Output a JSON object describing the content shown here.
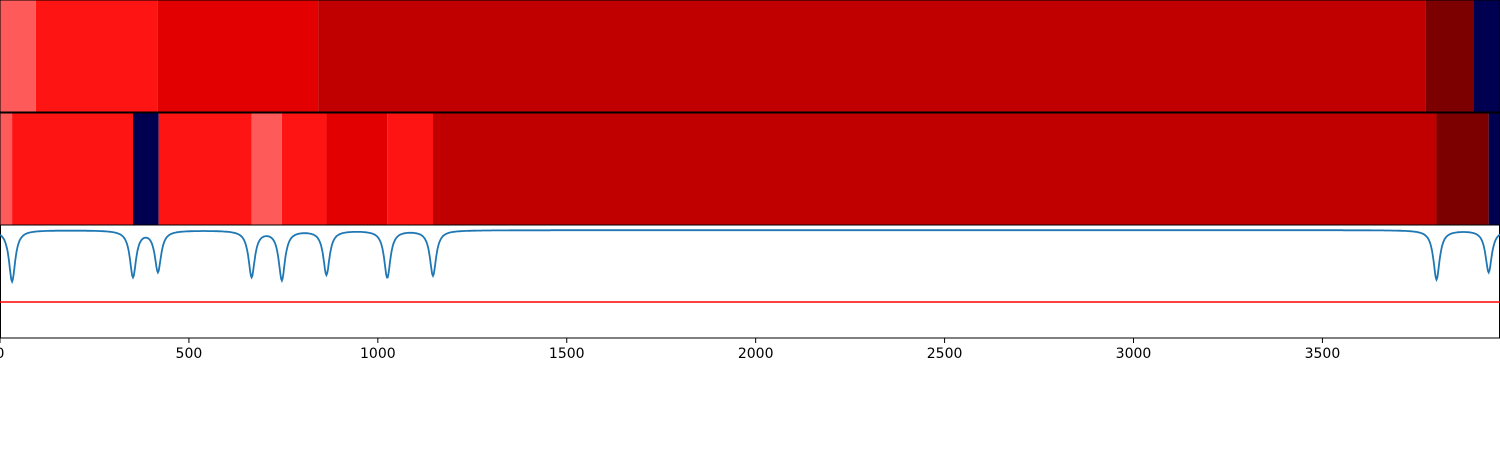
{
  "chart_data": [
    {
      "type": "heatmap",
      "title": "",
      "x_range": [
        0,
        3970
      ],
      "segments": [
        {
          "start": 0,
          "end": 95,
          "color": "#ff5a5a"
        },
        {
          "start": 95,
          "end": 418,
          "color": "#ff1414"
        },
        {
          "start": 418,
          "end": 842,
          "color": "#e20000"
        },
        {
          "start": 842,
          "end": 3772,
          "color": "#c00000"
        },
        {
          "start": 3772,
          "end": 3899,
          "color": "#7d0000"
        },
        {
          "start": 3899,
          "end": 3970,
          "color": "#000050"
        }
      ]
    },
    {
      "type": "heatmap",
      "title": "",
      "x_range": [
        0,
        3970
      ],
      "segments": [
        {
          "start": 0,
          "end": 32,
          "color": "#ff5a5a"
        },
        {
          "start": 32,
          "end": 352,
          "color": "#ff1414"
        },
        {
          "start": 352,
          "end": 420,
          "color": "#000050"
        },
        {
          "start": 420,
          "end": 666,
          "color": "#ff1414"
        },
        {
          "start": 666,
          "end": 746,
          "color": "#ff5a5a"
        },
        {
          "start": 746,
          "end": 864,
          "color": "#ff1414"
        },
        {
          "start": 864,
          "end": 1025,
          "color": "#e20000"
        },
        {
          "start": 1025,
          "end": 1146,
          "color": "#ff1414"
        },
        {
          "start": 1146,
          "end": 3802,
          "color": "#c00000"
        },
        {
          "start": 3802,
          "end": 3940,
          "color": "#7d0000"
        },
        {
          "start": 3940,
          "end": 3970,
          "color": "#000050"
        }
      ]
    },
    {
      "type": "line",
      "title": "",
      "xlabel": "",
      "ylabel": "",
      "xlim": [
        0,
        3970
      ],
      "ylim": [
        -0.05,
        1.05
      ],
      "xticks": [
        0,
        500,
        1000,
        1500,
        2000,
        2500,
        3000,
        3500
      ],
      "xtick_labels": [
        "0",
        "500",
        "1000",
        "1500",
        "2000",
        "2500",
        "3000",
        "3500"
      ],
      "threshold": {
        "y": 0.3,
        "color": "#ff0000"
      },
      "series": [
        {
          "color": "#1f77b4",
          "dips": [
            {
              "x": 32,
              "depth": 0.5
            },
            {
              "x": 352,
              "depth": 0.45
            },
            {
              "x": 418,
              "depth": 0.4
            },
            {
              "x": 666,
              "depth": 0.45
            },
            {
              "x": 746,
              "depth": 0.48
            },
            {
              "x": 864,
              "depth": 0.43
            },
            {
              "x": 1025,
              "depth": 0.46
            },
            {
              "x": 1146,
              "depth": 0.44
            },
            {
              "x": 3802,
              "depth": 0.48
            },
            {
              "x": 3940,
              "depth": 0.41
            }
          ]
        }
      ]
    }
  ],
  "colors": {
    "axis": "#000000",
    "line": "#1f77b4",
    "threshold": "#ff0000"
  }
}
